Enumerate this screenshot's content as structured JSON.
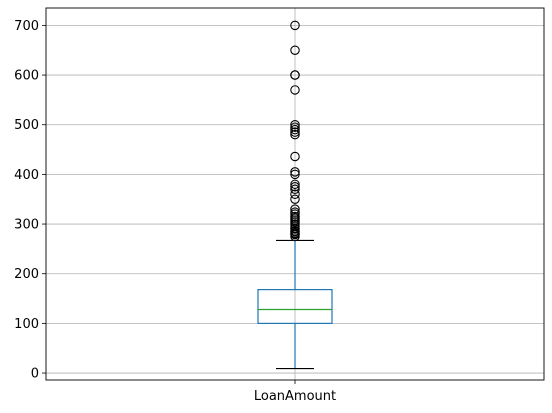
{
  "chart_data": {
    "type": "box",
    "title": "",
    "xlabel": "",
    "ylabel": "",
    "categories": [
      "LoanAmount"
    ],
    "ylim": [
      -14,
      735
    ],
    "yticks": [
      0,
      100,
      200,
      300,
      400,
      500,
      600,
      700
    ],
    "grid": true,
    "box": {
      "whisker_low": 9,
      "q1": 100,
      "median": 128,
      "q3": 168,
      "whisker_high": 267
    },
    "outliers": [
      275,
      279,
      280,
      282,
      285,
      286,
      290,
      292,
      296,
      300,
      304,
      308,
      312,
      315,
      320,
      324,
      330,
      350,
      360,
      370,
      375,
      380,
      400,
      405,
      436,
      480,
      485,
      490,
      495,
      500,
      570,
      600,
      600,
      650,
      700
    ],
    "colors": {
      "box": "#1f77b4",
      "median": "#2ca02c",
      "grid": "#b0b0b0",
      "axes": "#000000"
    }
  }
}
